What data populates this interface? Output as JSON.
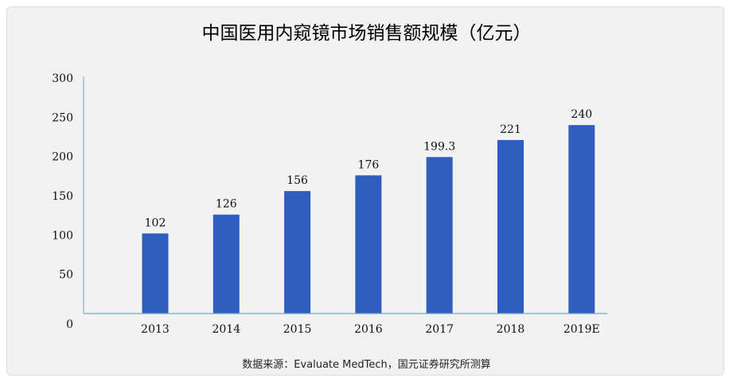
{
  "chart_data": {
    "type": "bar",
    "title": "中国医用内窥镜市场销售额规模（亿元）",
    "categories": [
      "2013",
      "2014",
      "2015",
      "2016",
      "2017",
      "2018",
      "2019E"
    ],
    "values": [
      102,
      126,
      156,
      176,
      199.3,
      221,
      240
    ],
    "data_labels": [
      "102",
      "126",
      "156",
      "176",
      "199.3",
      "221",
      "240"
    ],
    "yticks": [
      "0",
      "50",
      "100",
      "150",
      "200",
      "250",
      "300"
    ],
    "ylim": [
      0,
      300
    ],
    "xlabel": "",
    "ylabel": "",
    "bar_color": "#2f5dbe",
    "axis_color": "#6fa8c8",
    "grid": false,
    "legend": false
  },
  "footer": {
    "source": "数据来源：Evaluate MedTech，国元证券研究所测算"
  }
}
